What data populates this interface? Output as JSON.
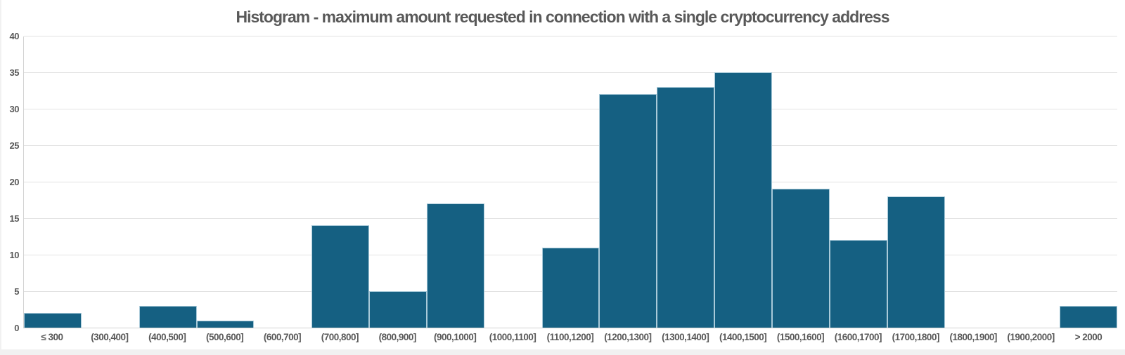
{
  "chart_data": {
    "type": "bar",
    "subtype": "histogram",
    "title": "Histogram - maximum amount requested in connection with a single cryptocurrency address",
    "categories": [
      "≤ 300",
      "(300,400]",
      "(400,500]",
      "(500,600]",
      "(600,700]",
      "(700,800]",
      "(800,900]",
      "(900,1000]",
      "(1000,1100]",
      "(1100,1200]",
      "(1200,1300]",
      "(1300,1400]",
      "(1400,1500]",
      "(1500,1600]",
      "(1600,1700]",
      "(1700,1800]",
      "(1800,1900]",
      "(1900,2000]",
      "> 2000"
    ],
    "values": [
      2,
      0,
      3,
      1,
      0,
      14,
      5,
      17,
      0,
      11,
      32,
      33,
      35,
      19,
      12,
      18,
      0,
      0,
      3
    ],
    "xlabel": "",
    "ylabel": "",
    "ylim": [
      0,
      40
    ],
    "y_ticks": [
      0,
      5,
      10,
      15,
      20,
      25,
      30,
      35,
      40
    ],
    "grid": "horizontal",
    "legend": "none",
    "colors": {
      "bar_fill": "#156082",
      "bar_border": "#a9cad9",
      "gridline": "#e2e2e2",
      "axis_line": "#d2d2d2",
      "text": "#595959",
      "background": "#ffffff",
      "edge_strip": "#f1f1f1"
    }
  }
}
